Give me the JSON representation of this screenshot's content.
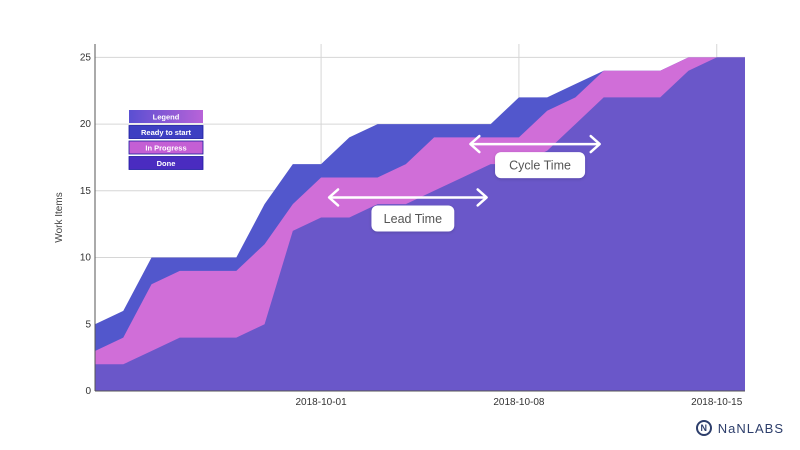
{
  "chart_data": {
    "type": "area",
    "stacked": true,
    "ylabel": "Work Items",
    "xlabel": "",
    "ylim": [
      0,
      26
    ],
    "yticks": [
      0,
      5,
      10,
      15,
      20,
      25
    ],
    "x": [
      "2018-09-23",
      "2018-09-24",
      "2018-09-25",
      "2018-09-26",
      "2018-09-27",
      "2018-09-28",
      "2018-09-29",
      "2018-09-30",
      "2018-10-01",
      "2018-10-02",
      "2018-10-03",
      "2018-10-04",
      "2018-10-05",
      "2018-10-06",
      "2018-10-07",
      "2018-10-08",
      "2018-10-09",
      "2018-10-10",
      "2018-10-11",
      "2018-10-12",
      "2018-10-13",
      "2018-10-14",
      "2018-10-15",
      "2018-10-16"
    ],
    "xticks": [
      "2018-10-01",
      "2018-10-08",
      "2018-10-15"
    ],
    "grid": true,
    "series": [
      {
        "name": "Done",
        "color": "#6a57c9",
        "values": [
          2,
          2,
          3,
          4,
          4,
          4,
          5,
          12,
          13,
          13,
          14,
          14,
          15,
          16,
          17,
          17,
          18,
          20,
          22,
          22,
          22,
          24,
          25,
          25
        ]
      },
      {
        "name": "In Progress",
        "color": "#d06ed8",
        "values": [
          1,
          2,
          5,
          5,
          5,
          5,
          6,
          2,
          3,
          3,
          2,
          3,
          4,
          3,
          2,
          2,
          3,
          2,
          2,
          2,
          2,
          1,
          0,
          0
        ]
      },
      {
        "name": "Ready to start",
        "color": "#5257cc",
        "values": [
          2,
          2,
          2,
          1,
          1,
          1,
          3,
          3,
          1,
          3,
          4,
          3,
          1,
          1,
          1,
          3,
          1,
          1,
          0,
          0,
          0,
          0,
          0,
          0
        ]
      }
    ],
    "legend": {
      "title": "Legend",
      "items": [
        "Ready to start",
        "In Progress",
        "Done"
      ],
      "colors": [
        "#3d3fc2",
        "#c45fd4",
        "#4a2cc0"
      ],
      "title_gradient": [
        "#5a4fd2",
        "#b863d8"
      ],
      "placement": "top-left"
    },
    "annotations": [
      {
        "label": "Lead Time",
        "x_from": "2018-10-01",
        "x_to": "2018-10-07",
        "y": 14.5
      },
      {
        "label": "Cycle Time",
        "x_from": "2018-10-06",
        "x_to": "2018-10-11",
        "y": 18.5
      }
    ]
  },
  "brand": {
    "mark": "N",
    "name": "NaNLABS"
  }
}
